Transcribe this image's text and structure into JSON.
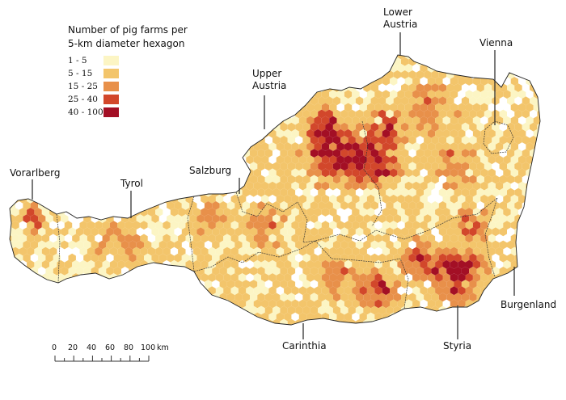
{
  "legend": {
    "title_line1": "Number of pig farms per",
    "title_line2": "5-km diameter hexagon",
    "classes": [
      {
        "label": "1 - 5",
        "color": "#fcf5c4"
      },
      {
        "label": "5 - 15",
        "color": "#f3c56b"
      },
      {
        "label": "15 - 25",
        "color": "#e8904a"
      },
      {
        "label": "25 - 40",
        "color": "#d2472b"
      },
      {
        "label": "40 - 100",
        "color": "#a30f25"
      }
    ]
  },
  "regions": {
    "lower_austria": {
      "line1": "Lower",
      "line2": "Austria"
    },
    "vienna": "Vienna",
    "upper_austria": {
      "line1": "Upper",
      "line2": "Austria"
    },
    "salzburg": "Salzburg",
    "vorarlberg": "Vorarlberg",
    "tyrol": "Tyrol",
    "burgenland": "Burgenland",
    "carinthia": "Carinthia",
    "styria": "Styria"
  },
  "scale_bar": {
    "ticks": [
      "0",
      "20",
      "40",
      "60",
      "80",
      "100"
    ],
    "unit": "km"
  }
}
